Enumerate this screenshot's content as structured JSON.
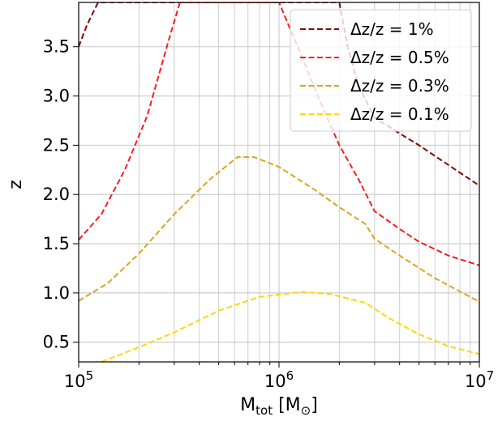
{
  "chart_data": {
    "type": "line",
    "x_scale": "log",
    "xlabel": "M_tot [M_⊙]",
    "xlabel_main": "M",
    "xlabel_sub": "tot",
    "xlabel_unit": " [M",
    "xlabel_unit_sub": "⊙",
    "xlabel_close": "]",
    "ylabel": "z",
    "xlim": [
      100000,
      10000000
    ],
    "ylim": [
      0.3,
      3.95
    ],
    "x_ticks": [
      {
        "base": "10",
        "exp": "5"
      },
      {
        "base": "10",
        "exp": "6"
      },
      {
        "base": "10",
        "exp": "7"
      }
    ],
    "y_ticks": [
      "0.5",
      "1.0",
      "1.5",
      "2.0",
      "2.5",
      "3.0",
      "3.5"
    ],
    "y_tick_values": [
      0.5,
      1.0,
      1.5,
      2.0,
      2.5,
      3.0,
      3.5
    ],
    "grid": true,
    "legend_position": "top-right",
    "series": [
      {
        "name": "Δz/z = 1%",
        "color": "#8b0000",
        "points": [
          [
            100000,
            3.5
          ],
          [
            110000,
            3.72
          ],
          [
            125000,
            3.95
          ],
          [
            2000000,
            3.95
          ],
          [
            2200000,
            3.5
          ],
          [
            2500000,
            3.1
          ],
          [
            3000000,
            2.78
          ],
          [
            4000000,
            2.62
          ],
          [
            5000000,
            2.5
          ],
          [
            7000000,
            2.3
          ],
          [
            10000000,
            2.09
          ]
        ]
      },
      {
        "name": "Δz/z = 0.5%",
        "color": "#ff1a1a",
        "points": [
          [
            100000,
            1.54
          ],
          [
            130000,
            1.8
          ],
          [
            170000,
            2.25
          ],
          [
            220000,
            2.8
          ],
          [
            280000,
            3.55
          ],
          [
            320000,
            3.95
          ],
          [
            1000000,
            3.95
          ],
          [
            1100000,
            3.75
          ],
          [
            1300000,
            3.4
          ],
          [
            1600000,
            2.95
          ],
          [
            2000000,
            2.5
          ],
          [
            2500000,
            2.15
          ],
          [
            3000000,
            1.83
          ],
          [
            4000000,
            1.65
          ],
          [
            5000000,
            1.52
          ],
          [
            7000000,
            1.38
          ],
          [
            10000000,
            1.28
          ]
        ]
      },
      {
        "name": "Δz/z = 0.3%",
        "color": "#daa520",
        "points": [
          [
            100000,
            0.92
          ],
          [
            140000,
            1.1
          ],
          [
            200000,
            1.4
          ],
          [
            300000,
            1.8
          ],
          [
            450000,
            2.15
          ],
          [
            620000,
            2.38
          ],
          [
            750000,
            2.38
          ],
          [
            1000000,
            2.28
          ],
          [
            1500000,
            2.05
          ],
          [
            2000000,
            1.87
          ],
          [
            2700000,
            1.7
          ],
          [
            3000000,
            1.55
          ],
          [
            4000000,
            1.38
          ],
          [
            6000000,
            1.15
          ],
          [
            10000000,
            0.91
          ]
        ]
      },
      {
        "name": "Δz/z = 0.1%",
        "color": "#ffd700",
        "points": [
          [
            130000,
            0.3
          ],
          [
            200000,
            0.45
          ],
          [
            300000,
            0.6
          ],
          [
            500000,
            0.82
          ],
          [
            800000,
            0.96
          ],
          [
            1300000,
            1.01
          ],
          [
            1800000,
            0.99
          ],
          [
            2700000,
            0.9
          ],
          [
            3500000,
            0.75
          ],
          [
            5000000,
            0.58
          ],
          [
            7000000,
            0.46
          ],
          [
            10000000,
            0.38
          ]
        ]
      }
    ]
  }
}
